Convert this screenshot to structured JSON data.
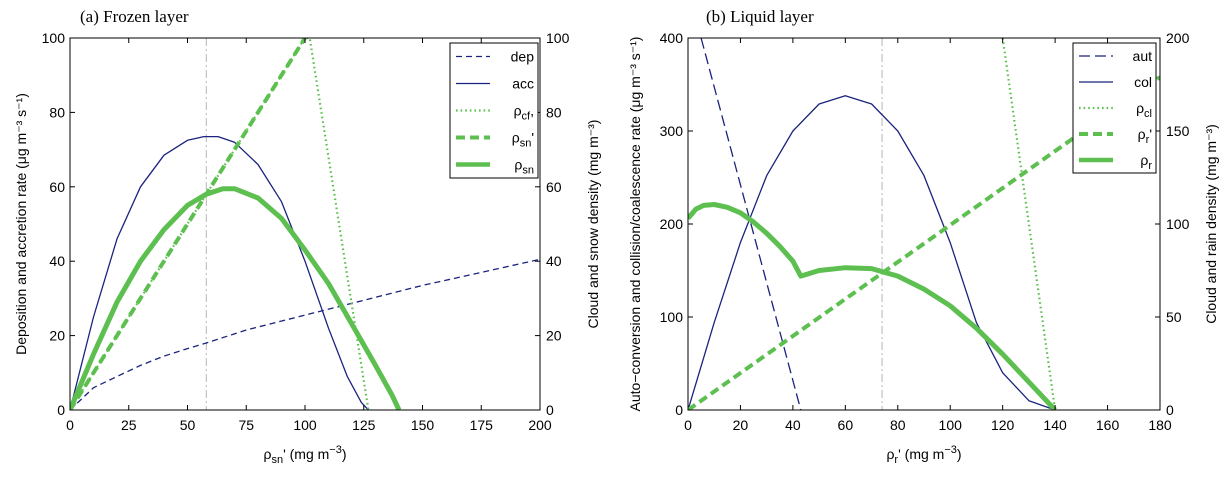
{
  "chart_data": [
    {
      "type": "line",
      "title": "(a) Frozen layer",
      "xlabel_base": "ρ",
      "xlabel_sub": "sn",
      "xlabel_tail": "' (mg m",
      "xlabel_sup": "−3",
      "xlabel_close": ")",
      "ylabel_left": "Deposition and accretion rate (μg m⁻³ s⁻¹)",
      "ylabel_right": "Cloud and snow density (mg m⁻³)",
      "xlim": [
        0,
        200
      ],
      "ylim_left": [
        0,
        100
      ],
      "ylim_right": [
        0,
        100
      ],
      "xticks": [
        "0",
        "25",
        "50",
        "75",
        "100",
        "125",
        "150",
        "175",
        "200"
      ],
      "yticks_left": [
        "0",
        "20",
        "40",
        "60",
        "80",
        "100"
      ],
      "yticks_right": [
        "0",
        "20",
        "40",
        "60",
        "80",
        "100"
      ],
      "vline_x": 58,
      "legend": [
        {
          "label": "dep",
          "sub": "",
          "suffix": ""
        },
        {
          "label": "acc",
          "sub": "",
          "suffix": ""
        },
        {
          "label": "ρ",
          "sub": "cf",
          "suffix": ","
        },
        {
          "label": "ρ",
          "sub": "sn",
          "suffix": "'"
        },
        {
          "label": "ρ",
          "sub": "sn",
          "suffix": ""
        }
      ],
      "series": [
        {
          "key": "dep",
          "axis": "left",
          "x": [
            0,
            10,
            20,
            30,
            40,
            50,
            58,
            75,
            100,
            125,
            150,
            175,
            200
          ],
          "values": [
            0,
            6,
            9,
            12,
            14.5,
            16.5,
            18,
            21.5,
            25.5,
            29.5,
            33.5,
            37,
            40.5
          ]
        },
        {
          "key": "acc",
          "axis": "left",
          "x": [
            0,
            10,
            20,
            30,
            40,
            50,
            57,
            63,
            70,
            80,
            90,
            100,
            110,
            118,
            124,
            127
          ],
          "values": [
            0,
            25,
            46,
            60,
            68.5,
            72.5,
            73.5,
            73.5,
            72,
            66,
            56,
            40,
            22,
            9,
            2,
            0
          ]
        },
        {
          "key": "rho_cf",
          "axis": "right",
          "x": [
            0,
            100,
            102,
            127
          ],
          "values": [
            0,
            100,
            100,
            0
          ]
        },
        {
          "key": "rho_sn_prime",
          "axis": "right",
          "x": [
            0,
            100
          ],
          "values": [
            0,
            100
          ]
        },
        {
          "key": "rho_sn",
          "axis": "right",
          "x": [
            0,
            10,
            20,
            30,
            40,
            50,
            58,
            65,
            70,
            80,
            90,
            100,
            110,
            120,
            130,
            137,
            140
          ],
          "values": [
            0,
            15,
            29,
            40,
            48.5,
            55,
            58,
            59.5,
            59.5,
            57,
            51.5,
            43,
            34,
            23,
            12,
            4,
            0
          ]
        }
      ]
    },
    {
      "type": "line",
      "title": "(b) Liquid layer",
      "xlabel_base": "ρ",
      "xlabel_sub": "r",
      "xlabel_tail": "' (mg m",
      "xlabel_sup": "−3",
      "xlabel_close": ")",
      "ylabel_left": "Auto−conversion and collision/coalescence rate (μg m⁻³ s⁻¹)",
      "ylabel_right": "Cloud and rain density (mg m⁻³)",
      "xlim": [
        0,
        180
      ],
      "ylim_left": [
        0,
        400
      ],
      "ylim_right": [
        0,
        200
      ],
      "xticks": [
        "0",
        "20",
        "40",
        "60",
        "80",
        "100",
        "120",
        "140",
        "160",
        "180"
      ],
      "yticks_left": [
        "0",
        "100",
        "200",
        "300",
        "400"
      ],
      "yticks_right": [
        "0",
        "50",
        "100",
        "150",
        "200"
      ],
      "vline_x": 74,
      "legend": [
        {
          "label": "aut",
          "sub": "",
          "suffix": ""
        },
        {
          "label": "col",
          "sub": "",
          "suffix": ""
        },
        {
          "label": "ρ",
          "sub": "cl",
          "suffix": ""
        },
        {
          "label": "ρ",
          "sub": "r",
          "suffix": "'"
        },
        {
          "label": "ρ",
          "sub": "r",
          "suffix": ""
        }
      ],
      "series": [
        {
          "key": "aut",
          "axis": "left",
          "x": [
            5,
            43
          ],
          "values": [
            400,
            0
          ]
        },
        {
          "key": "col",
          "axis": "left",
          "x": [
            0,
            10,
            20,
            30,
            40,
            50,
            60,
            70,
            80,
            90,
            100,
            110,
            120,
            130,
            140
          ],
          "values": [
            0,
            94,
            180,
            252,
            300,
            329,
            338,
            329,
            300,
            252,
            180,
            94,
            40,
            10,
            0
          ]
        },
        {
          "key": "rho_cl",
          "axis": "right",
          "x": [
            120,
            140
          ],
          "values": [
            200,
            0
          ]
        },
        {
          "key": "rho_r_prime",
          "axis": "right",
          "x": [
            0,
            180
          ],
          "values": [
            0,
            179
          ]
        },
        {
          "key": "rho_r",
          "axis": "right",
          "x": [
            0,
            3,
            6,
            10,
            15,
            20,
            25,
            30,
            35,
            40,
            43,
            50,
            60,
            70,
            80,
            90,
            100,
            110,
            120,
            130,
            140
          ],
          "values": [
            103,
            108,
            110,
            110.5,
            109,
            106,
            101,
            95,
            88,
            80,
            72,
            75,
            76.5,
            76,
            72,
            65,
            56,
            44,
            30,
            15,
            0
          ]
        }
      ]
    }
  ],
  "colors": {
    "navy": "#1a237e",
    "green": "#5cbf4f"
  }
}
